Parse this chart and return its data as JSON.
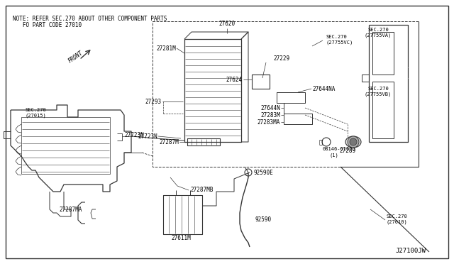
{
  "bg_color": "#ffffff",
  "border_color": "#333333",
  "line_color": "#333333",
  "text_color": "#000000",
  "note_text1": "NOTE: REFER SEC.270 ABOUT OTHER COMPONENT PARTS",
  "note_text2": "   FO PART CODE 27010",
  "diagram_code": "J27100JW",
  "font_size": 5.5,
  "title_font_size": 5.5
}
